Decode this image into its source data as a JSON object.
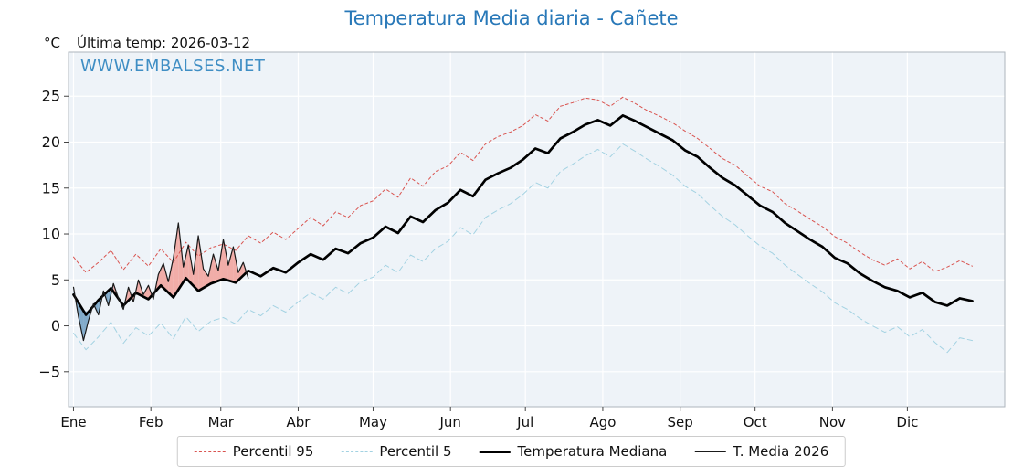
{
  "title": "Temperatura Media diaria - Cañete",
  "watermark": "WWW.EMBALSES.NET",
  "y_unit_label": "°C",
  "last_temp_label": "Última temp: 2026-03-12",
  "colors": {
    "title": "#2878b8",
    "watermark": "#3f8ec4",
    "plot_background": "#eef3f8",
    "gridline": "#ffffff",
    "spine": "#aeb6bd",
    "fill_above_median": "#f1a09a",
    "fill_below_median": "#6f9ec2"
  },
  "chart_data": {
    "type": "line",
    "title": "Temperatura Media diaria - Cañete",
    "x_axis": {
      "tick_labels": [
        "Ene",
        "Feb",
        "Mar",
        "Abr",
        "May",
        "Jun",
        "Jul",
        "Ago",
        "Sep",
        "Oct",
        "Nov",
        "Dic"
      ],
      "tick_days": [
        1,
        32,
        60,
        91,
        121,
        152,
        182,
        213,
        244,
        274,
        305,
        335
      ],
      "lim": [
        -1,
        374
      ]
    },
    "y_axis": {
      "ticks": [
        -5,
        0,
        5,
        10,
        15,
        20,
        25
      ],
      "lim": [
        -8.8,
        29.8
      ]
    },
    "grid": true,
    "legend_position": "bottom-center",
    "series": [
      {
        "name": "Percentil 95",
        "color": "#d9534f",
        "dash": "3 3",
        "line_width": 1,
        "x_start": 1,
        "x_step": 5,
        "values": [
          7.5,
          5.8,
          6.9,
          8.2,
          6.1,
          7.8,
          6.5,
          8.4,
          6.9,
          9.1,
          7.6,
          8.5,
          8.9,
          8.2,
          9.8,
          9.0,
          10.2,
          9.4,
          10.6,
          11.8,
          10.9,
          12.4,
          11.8,
          13.1,
          13.6,
          14.9,
          14.0,
          16.1,
          15.2,
          16.8,
          17.4,
          18.9,
          18.0,
          19.8,
          20.6,
          21.1,
          21.8,
          23.0,
          22.3,
          23.9,
          24.3,
          24.8,
          24.6,
          23.9,
          24.9,
          24.2,
          23.4,
          22.8,
          22.1,
          21.2,
          20.4,
          19.3,
          18.2,
          17.5,
          16.3,
          15.2,
          14.6,
          13.3,
          12.5,
          11.6,
          10.8,
          9.7,
          9.0,
          8.0,
          7.2,
          6.6,
          7.3,
          6.2,
          7.0,
          5.9,
          6.4,
          7.1,
          6.5
        ]
      },
      {
        "name": "Percentil 5",
        "color": "#a3d2e2",
        "dash": "6 4",
        "line_width": 1,
        "x_start": 1,
        "x_step": 5,
        "values": [
          -0.8,
          -2.6,
          -1.2,
          0.4,
          -1.9,
          -0.2,
          -1.1,
          0.3,
          -1.4,
          1.0,
          -0.6,
          0.5,
          0.9,
          0.2,
          1.8,
          1.1,
          2.2,
          1.5,
          2.6,
          3.6,
          2.9,
          4.2,
          3.5,
          4.8,
          5.3,
          6.6,
          5.8,
          7.7,
          7.0,
          8.4,
          9.2,
          10.7,
          9.9,
          11.8,
          12.6,
          13.3,
          14.3,
          15.6,
          15.0,
          16.8,
          17.6,
          18.5,
          19.2,
          18.4,
          19.8,
          19.0,
          18.1,
          17.3,
          16.4,
          15.2,
          14.4,
          13.1,
          11.9,
          11.0,
          9.8,
          8.7,
          7.9,
          6.6,
          5.6,
          4.6,
          3.7,
          2.5,
          1.8,
          0.8,
          0.0,
          -0.7,
          -0.1,
          -1.2,
          -0.4,
          -1.8,
          -2.9,
          -1.3,
          -1.6
        ]
      },
      {
        "name": "Temperatura Mediana",
        "color": "#000000",
        "dash": null,
        "line_width": 2.7,
        "x_start": 1,
        "x_step": 5,
        "values": [
          3.4,
          1.2,
          2.8,
          4.1,
          2.2,
          3.6,
          2.9,
          4.4,
          3.1,
          5.2,
          3.8,
          4.6,
          5.1,
          4.7,
          6.0,
          5.4,
          6.3,
          5.8,
          6.9,
          7.8,
          7.2,
          8.4,
          7.9,
          9.0,
          9.6,
          10.8,
          10.1,
          11.9,
          11.3,
          12.6,
          13.4,
          14.8,
          14.1,
          15.9,
          16.6,
          17.2,
          18.1,
          19.3,
          18.8,
          20.4,
          21.1,
          21.9,
          22.4,
          21.8,
          22.9,
          22.3,
          21.6,
          20.9,
          20.2,
          19.1,
          18.4,
          17.2,
          16.1,
          15.3,
          14.2,
          13.1,
          12.4,
          11.2,
          10.3,
          9.4,
          8.6,
          7.4,
          6.8,
          5.7,
          4.9,
          4.2,
          3.8,
          3.1,
          3.6,
          2.6,
          2.2,
          3.0,
          2.7
        ]
      },
      {
        "name": "T. Media 2026",
        "color": "#1a1a1a",
        "dash": null,
        "line_width": 1.2,
        "x_start": 1,
        "x_step": 2,
        "fill_vs_series": "Temperatura Mediana",
        "values": [
          4.2,
          1.0,
          -1.6,
          0.6,
          2.4,
          1.2,
          3.8,
          2.2,
          4.6,
          3.0,
          1.8,
          4.2,
          2.6,
          5.0,
          3.4,
          4.4,
          2.9,
          5.6,
          6.8,
          4.8,
          7.4,
          11.2,
          6.4,
          8.8,
          5.6,
          9.8,
          6.2,
          5.4,
          7.8,
          6.0,
          9.4,
          6.6,
          8.6,
          5.8,
          6.9,
          5.2
        ]
      }
    ]
  }
}
